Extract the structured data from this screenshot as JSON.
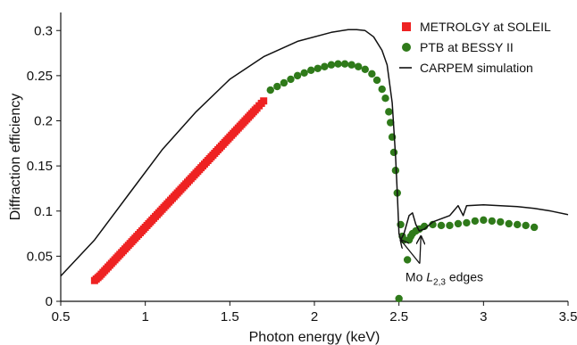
{
  "chart_data": {
    "type": "scatter",
    "title": "",
    "xlabel": "Photon energy (keV)",
    "ylabel": "Diffraction efficiency",
    "xlim": [
      0.5,
      3.5
    ],
    "ylim": [
      0,
      0.32
    ],
    "xticks": [
      "0.5",
      "1",
      "1.5",
      "2",
      "2.5",
      "3",
      "3.5"
    ],
    "yticks": [
      "0",
      "0.05",
      "0.1",
      "0.15",
      "0.2",
      "0.25",
      "0.3"
    ],
    "grid": false,
    "legend_position": "top-right",
    "series": [
      {
        "name": "METROLGY at SOLEIL",
        "kind": "markers",
        "marker": "square",
        "color": "#ee2222",
        "x": [
          0.7,
          0.73,
          0.76,
          0.79,
          0.82,
          0.85,
          0.88,
          0.91,
          0.94,
          0.97,
          1.0,
          1.03,
          1.06,
          1.09,
          1.12,
          1.15,
          1.18,
          1.21,
          1.24,
          1.27,
          1.3,
          1.33,
          1.36,
          1.39,
          1.42,
          1.45,
          1.48,
          1.51,
          1.54,
          1.57,
          1.6,
          1.63,
          1.66,
          1.7
        ],
        "y": [
          0.023,
          0.028,
          0.034,
          0.04,
          0.046,
          0.052,
          0.058,
          0.064,
          0.07,
          0.076,
          0.082,
          0.088,
          0.094,
          0.1,
          0.106,
          0.112,
          0.118,
          0.124,
          0.13,
          0.136,
          0.142,
          0.148,
          0.154,
          0.16,
          0.166,
          0.172,
          0.178,
          0.184,
          0.19,
          0.196,
          0.202,
          0.208,
          0.214,
          0.222
        ]
      },
      {
        "name": "PTB at BESSY II",
        "kind": "markers",
        "marker": "circle",
        "color": "#2f7a1a",
        "x": [
          1.74,
          1.78,
          1.82,
          1.86,
          1.9,
          1.94,
          1.98,
          2.02,
          2.06,
          2.1,
          2.14,
          2.18,
          2.22,
          2.26,
          2.3,
          2.34,
          2.37,
          2.4,
          2.42,
          2.44,
          2.45,
          2.46,
          2.47,
          2.48,
          2.49,
          2.5,
          2.51,
          2.52,
          2.53,
          2.55,
          2.56,
          2.57,
          2.58,
          2.6,
          2.62,
          2.65,
          2.7,
          2.75,
          2.8,
          2.85,
          2.9,
          2.95,
          3.0,
          3.05,
          3.1,
          3.15,
          3.2,
          3.25,
          3.3
        ],
        "y": [
          0.234,
          0.238,
          0.242,
          0.246,
          0.25,
          0.253,
          0.256,
          0.258,
          0.26,
          0.262,
          0.263,
          0.263,
          0.262,
          0.26,
          0.257,
          0.252,
          0.245,
          0.235,
          0.225,
          0.21,
          0.198,
          0.182,
          0.165,
          0.145,
          0.12,
          0.003,
          0.085,
          0.072,
          0.068,
          0.046,
          0.068,
          0.072,
          0.075,
          0.078,
          0.08,
          0.083,
          0.085,
          0.084,
          0.084,
          0.086,
          0.087,
          0.089,
          0.09,
          0.089,
          0.088,
          0.086,
          0.085,
          0.084,
          0.082
        ]
      },
      {
        "name": "CARPEM simulation",
        "kind": "line",
        "color": "#111111",
        "x": [
          0.5,
          0.7,
          0.9,
          1.1,
          1.3,
          1.5,
          1.7,
          1.9,
          2.1,
          2.2,
          2.25,
          2.3,
          2.35,
          2.4,
          2.43,
          2.46,
          2.48,
          2.49,
          2.5,
          2.51,
          2.53,
          2.56,
          2.58,
          2.6,
          2.62,
          2.65,
          2.7,
          2.8,
          2.85,
          2.88,
          2.9,
          3.0,
          3.1,
          3.2,
          3.3,
          3.4,
          3.5
        ],
        "y": [
          0.028,
          0.068,
          0.118,
          0.168,
          0.21,
          0.246,
          0.271,
          0.288,
          0.298,
          0.301,
          0.301,
          0.3,
          0.293,
          0.278,
          0.262,
          0.22,
          0.16,
          0.12,
          0.075,
          0.068,
          0.075,
          0.095,
          0.098,
          0.085,
          0.078,
          0.08,
          0.088,
          0.095,
          0.106,
          0.095,
          0.106,
          0.107,
          0.106,
          0.105,
          0.103,
          0.1,
          0.096
        ]
      }
    ],
    "annotations": [
      {
        "text_prefix": "Mo ",
        "text_italic": "L",
        "text_subscript": "2,3",
        "text_suffix": " edges",
        "arrow_targets": [
          [
            2.51,
            0.068
          ],
          [
            2.63,
            0.072
          ]
        ],
        "text_anchor": [
          2.57,
          0.028
        ]
      }
    ]
  }
}
